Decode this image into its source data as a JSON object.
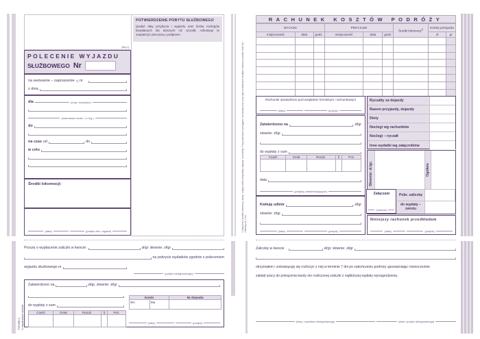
{
  "left_order": {
    "mp_label": "(m.p.)",
    "title_line1": "POLECENIE WYJAZDU",
    "title_line2": "SŁUŻBOWEGO",
    "nr_label": "Nr",
    "wezwanie_label": "na wezwanie – zaproszenie",
    "footnote_mark": "*)",
    "nr_small": "nr",
    "z_dnia_label": "z dnia",
    "dla_label": "dla",
    "imie_hint": "(imię i nazwisko)",
    "stanowisko_hint": "(stanowisko służb., nr leg.)",
    "do_label": "do",
    "na_czas_label": "na czas",
    "od_label": "od",
    "do_label2": "do",
    "w_celu_label": "w celu",
    "srodki_label": "Środki lokomocji:",
    "data_hint": "(data)",
    "podpis_zlec_hint": "(podpis zlec. wyjazd)"
  },
  "confirmation": {
    "title": "POTWIERDZENIE POBYTU SŁUŻBOWEGO",
    "text": "(podać daty przybycia i wyjazdu oraz liczbę noclegów bezpłatnych lub tańszych niż ryczałt). Adnotacje te zaopatrzyć pieczęcią i podpisem."
  },
  "advance_request": {
    "text1": "Proszę o wypłacenie zaliczki w kwocie:",
    "zl_gr": "zł/gr",
    "slownie": "słownie: zł/gr",
    "text2": "na pokrycie wydatków zgodnie z poleceniem",
    "text3": "wyjazdu służbowego nr",
    "podpis_delegowanego": "(podpis delegowanego)",
    "zatwierdzono": "Zatwierdzono na",
    "zl_gr_slownie": "zł/gr,  słownie: zł/gr",
    "do_wyplaty": "do wypłaty z sum",
    "budget_headers": [
      "Część",
      "Dział",
      "Rozdz.",
      "§",
      "Poz."
    ],
    "konto": "Konto",
    "nr_dowodu": "Nr dowodu",
    "wn": "Wn",
    "ma": "Ma",
    "data_hint": "(data)",
    "podpis_hint": "(podpis)",
    "side_code": "TYP-50E-3",
    "side_note": "*) niepotrzebne skreślić"
  },
  "cost_account": {
    "title": "RACHUNEK KOSZTÓW PODRÓŻY",
    "footnote": "*) Wymienić środek lokomocji, klasę, rodzaj biletu (bezpłatny, ulgowy, normalny). Przy podróżach pociągami, furmanką oraz przy użyciu własnych środków lokomocji podać ilość km i stawkę za 1 km.",
    "headers": {
      "wyjazd": "WYJAZD",
      "przyjazd": "PRZYJAZD",
      "srodki": "Środki lokomocji",
      "srodki_mark": "*)",
      "koszty": "Koszty przejazdu",
      "miejscowosc": "miejscowość",
      "data": "data",
      "godz": "godz.",
      "zl": "zł",
      "gr": "gr"
    },
    "checked": "Rachunek sprawdzono pod względem formalnym i rachunkowym",
    "data_hint": "(data)",
    "podpis_hint": "(podpis)",
    "zatwierdzono": "Zatwierdzono na",
    "zl_gr": "zł/gr",
    "slownie": "słownie: zł/gr",
    "do_wyplaty": "do wypłaty z sum",
    "budget_headers": [
      "Część",
      "Dział",
      "Rozdz.",
      "§",
      "Poz."
    ],
    "data_label": "data",
    "podpisy_zatw": "(podpisy zatwierdzających)",
    "kwituje": "Kwituję odbiór",
    "summary": [
      "Ryczałty za dojazdy",
      "Razem przyjazdy, dojazdy",
      "Diety",
      "Noclegi wg rachunków",
      "Noclegi – ryczałt",
      "Inne wydatki wg załączników"
    ],
    "slownie_vert": "Słownie: zł./gr.",
    "ogolem": "Ogółem",
    "zalaczam": "Załączam",
    "slownie_hint": "(słownie)",
    "pobr_zaliczke": "Pobr. zaliczkę",
    "do_wyplaty_zwrotu": "do wypłaty – zwrotu",
    "niniejszy": "Niniejszy rachunek przedkładam"
  },
  "advance_receipt": {
    "text1": "Zaliczkę w kwocie",
    "zl_gr": "zł/gr.  słownie: zł/gr",
    "text2": "otrzymałem i zobowiązuję się rozliczyć z niej w terminie 7 dni po zakończeniu podróży upoważniając równocześnie",
    "text3": "zakład pracy do potrącenia kwoty nie rozliczonej zaliczki z najbliższej wypłaty wynagrodzenia.",
    "imie_hint": "(imię i nazwisko delegowanego)",
    "data_podpis_hint": "(data i podpis delegowanego)"
  },
  "colors": {
    "accent": "#5e4772",
    "fill": "#e4dee8"
  }
}
